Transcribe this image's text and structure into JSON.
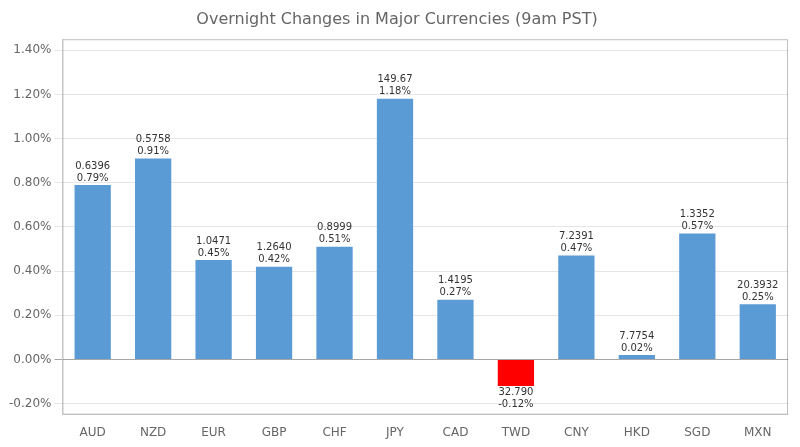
{
  "chart_data": {
    "type": "bar",
    "title": "Overnight Changes in Major Currencies (9am PST)",
    "categories": [
      "AUD",
      "NZD",
      "EUR",
      "GBP",
      "CHF",
      "JPY",
      "CAD",
      "TWD",
      "CNY",
      "HKD",
      "SGD",
      "MXN"
    ],
    "values": [
      0.79,
      0.91,
      0.45,
      0.42,
      0.51,
      1.18,
      0.27,
      -0.12,
      0.47,
      0.02,
      0.57,
      0.25
    ],
    "value_labels": [
      "0.79%",
      "0.91%",
      "0.45%",
      "0.42%",
      "0.51%",
      "1.18%",
      "0.27%",
      "-0.12%",
      "0.47%",
      "0.02%",
      "0.57%",
      "0.25%"
    ],
    "price_labels": [
      "0.6396",
      "0.5758",
      "1.0471",
      "1.2640",
      "0.8999",
      "149.67",
      "1.4195",
      "32.790",
      "7.2391",
      "7.7754",
      "1.3352",
      "20.3932"
    ],
    "colors": [
      "#5B9BD5",
      "#5B9BD5",
      "#5B9BD5",
      "#5B9BD5",
      "#5B9BD5",
      "#5B9BD5",
      "#5B9BD5",
      "#FF0000",
      "#5B9BD5",
      "#5B9BD5",
      "#5B9BD5",
      "#5B9BD5"
    ],
    "ylim": [
      -0.25,
      1.45
    ],
    "yticks": [
      {
        "value": -0.2,
        "label": "-0.20%"
      },
      {
        "value": 0,
        "label": "0.00%"
      },
      {
        "value": 0.2,
        "label": "0.20%"
      },
      {
        "value": 0.4,
        "label": "0.40%"
      },
      {
        "value": 0.6,
        "label": "0.60%"
      },
      {
        "value": 0.8,
        "label": "0.80%"
      },
      {
        "value": 1.0,
        "label": "1.00%"
      },
      {
        "value": 1.2,
        "label": "1.20%"
      },
      {
        "value": 1.4,
        "label": "1.40%"
      }
    ],
    "grid": true,
    "data_labels": true
  }
}
